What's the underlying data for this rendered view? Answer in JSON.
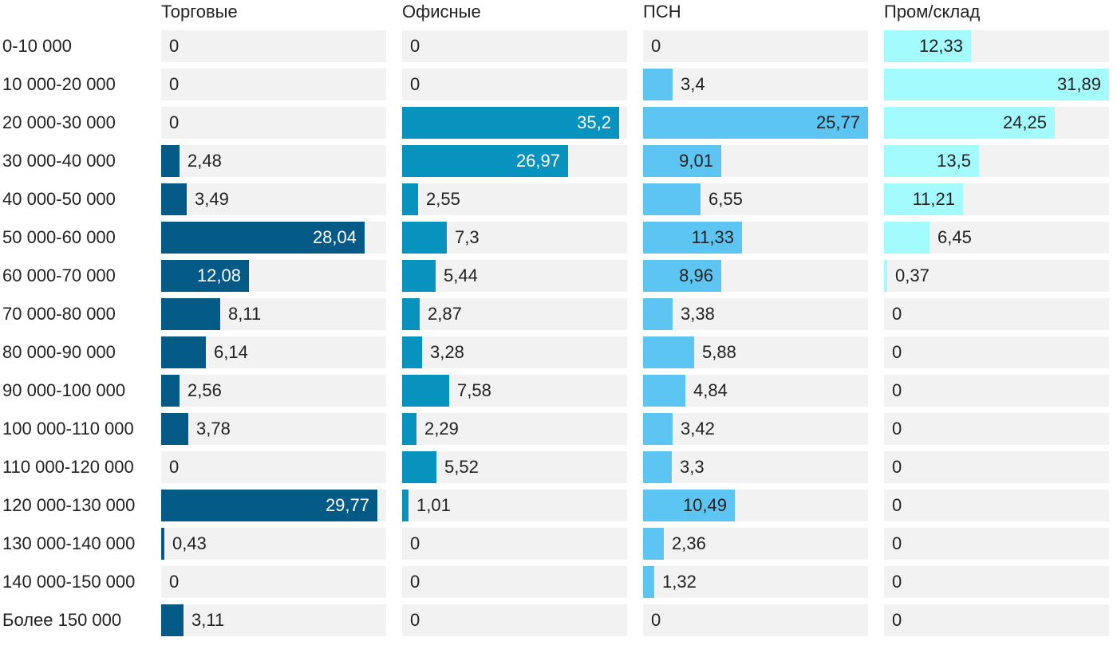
{
  "chart_data": {
    "type": "bar",
    "orientation": "horizontal",
    "layout": "small-multiples",
    "categories": [
      "0-10 000",
      "10 000-20 000",
      "20 000-30 000",
      "30 000-40 000",
      "40 000-50 000",
      "50 000-60 000",
      "60 000-70 000",
      "70 000-80 000",
      "80 000-90 000",
      "90 000-100 000",
      "100 000-110 000",
      "110 000-120 000",
      "120 000-130 000",
      "130 000-140 000",
      "140 000-150 000",
      "Более 150 000"
    ],
    "series": [
      {
        "name": "Торговые",
        "color": "#045a86",
        "xlim": [
          0,
          31
        ],
        "values": [
          0,
          0,
          0,
          2.48,
          3.49,
          28.04,
          12.08,
          8.11,
          6.14,
          2.56,
          3.78,
          0,
          29.77,
          0.43,
          0,
          3.11
        ],
        "labels": [
          "0",
          "0",
          "0",
          "2,48",
          "3,49",
          "28,04",
          "12,08",
          "8,11",
          "6,14",
          "2,56",
          "3,78",
          "0",
          "29,77",
          "0,43",
          "0",
          "3,11"
        ]
      },
      {
        "name": "Офисные",
        "color": "#0892be",
        "xlim": [
          0,
          36.5
        ],
        "values": [
          0,
          0,
          35.2,
          26.97,
          2.55,
          7.3,
          5.44,
          2.87,
          3.28,
          7.58,
          2.29,
          5.52,
          1.01,
          0,
          0,
          0
        ],
        "labels": [
          "0",
          "0",
          "35,2",
          "26,97",
          "2,55",
          "7,3",
          "5,44",
          "2,87",
          "3,28",
          "7,58",
          "2,29",
          "5,52",
          "1,01",
          "0",
          "0",
          "0"
        ]
      },
      {
        "name": "ПСН",
        "color": "#5dc5f2",
        "xlim": [
          0,
          25.8
        ],
        "values": [
          0,
          3.4,
          25.77,
          9.01,
          6.55,
          11.33,
          8.96,
          3.38,
          5.88,
          4.84,
          3.42,
          3.3,
          10.49,
          2.36,
          1.32,
          0
        ],
        "labels": [
          "0",
          "3,4",
          "25,77",
          "9,01",
          "6,55",
          "11,33",
          "8,96",
          "3,38",
          "5,88",
          "4,84",
          "3,42",
          "3,3",
          "10,49",
          "2,36",
          "1,32",
          "0"
        ]
      },
      {
        "name": "Пром/склад",
        "color": "#a3fbfd",
        "xlim": [
          0,
          31.9
        ],
        "values": [
          12.33,
          31.89,
          24.25,
          13.5,
          11.21,
          6.45,
          0.37,
          0,
          0,
          0,
          0,
          0,
          0,
          0,
          0,
          0
        ],
        "labels": [
          "12,33",
          "31,89",
          "24,25",
          "13,5",
          "11,21",
          "6,45",
          "0,37",
          "0",
          "0",
          "0",
          "0",
          "0",
          "0",
          "0",
          "0",
          "0"
        ]
      }
    ],
    "title": "",
    "xlabel": "",
    "ylabel": "",
    "grid": false,
    "legend": "none"
  }
}
